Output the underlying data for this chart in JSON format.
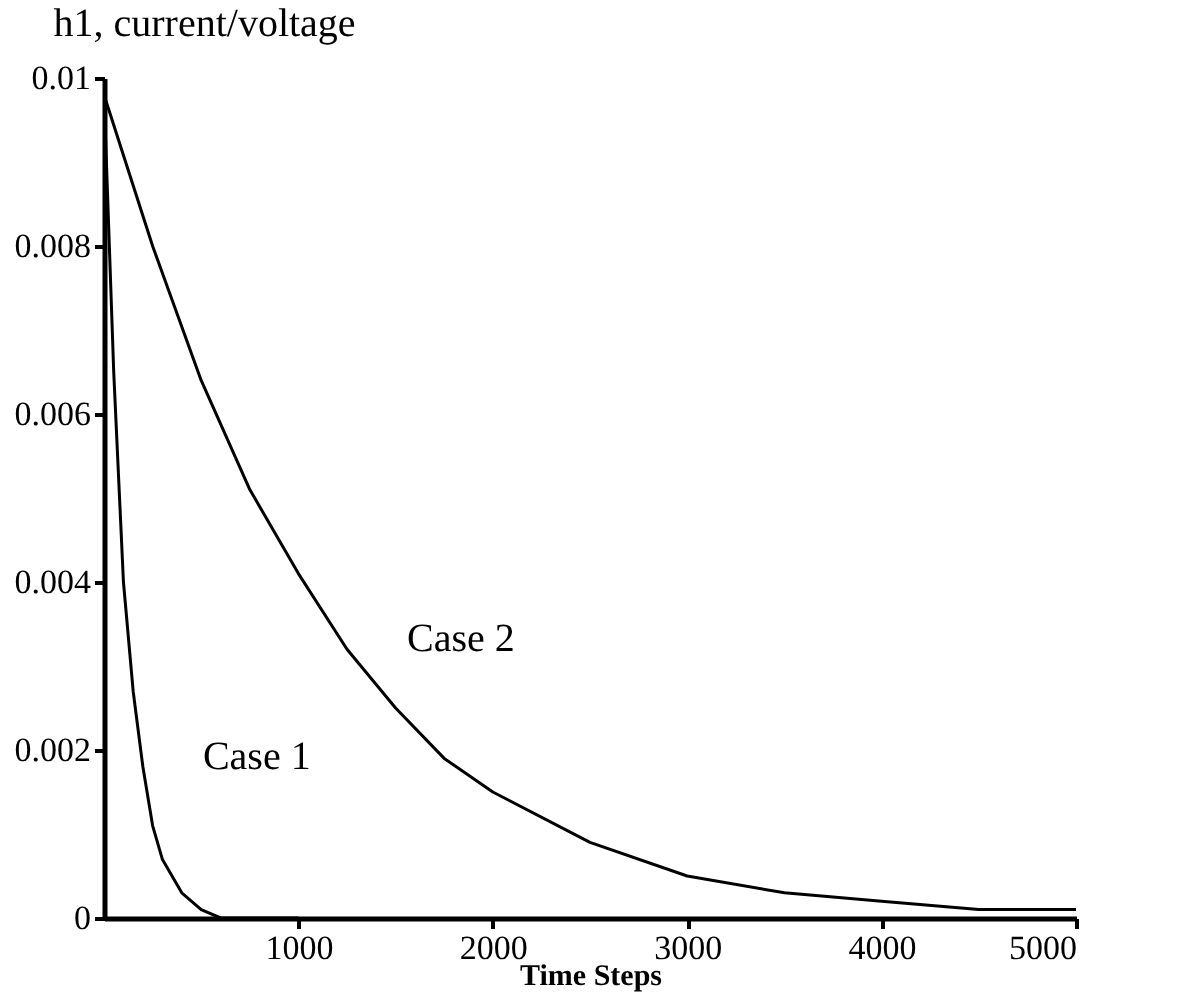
{
  "chart_data": {
    "type": "line",
    "title": "h1, current/voltage",
    "xlabel": "Time Steps",
    "xlim": [
      0,
      5000
    ],
    "xticks": [
      1000,
      2000,
      3000,
      4000,
      5000
    ],
    "ylim": [
      0,
      0.01
    ],
    "yticks": [
      0,
      0.002,
      0.004,
      0.006,
      0.008,
      0.01
    ],
    "grid": false,
    "legend": false,
    "marker": "none",
    "line_style": "solid",
    "series": [
      {
        "name": "Case 1",
        "color": "#000000",
        "x": [
          0,
          20,
          50,
          100,
          150,
          200,
          250,
          300,
          400,
          500,
          600,
          800,
          1000
        ],
        "values": [
          0.0098,
          0.0085,
          0.0065,
          0.004,
          0.0027,
          0.0018,
          0.0011,
          0.0007,
          0.0003,
          0.0001,
          0,
          0,
          0
        ]
      },
      {
        "name": "Case 2",
        "color": "#000000",
        "x": [
          0,
          250,
          500,
          750,
          1000,
          1250,
          1500,
          1750,
          2000,
          2500,
          3000,
          3500,
          4000,
          4500,
          5000
        ],
        "values": [
          0.0098,
          0.008,
          0.0064,
          0.0051,
          0.0041,
          0.0032,
          0.0025,
          0.0019,
          0.0015,
          0.0009,
          0.0005,
          0.0003,
          0.0002,
          0.0001,
          0.0001
        ]
      }
    ]
  }
}
